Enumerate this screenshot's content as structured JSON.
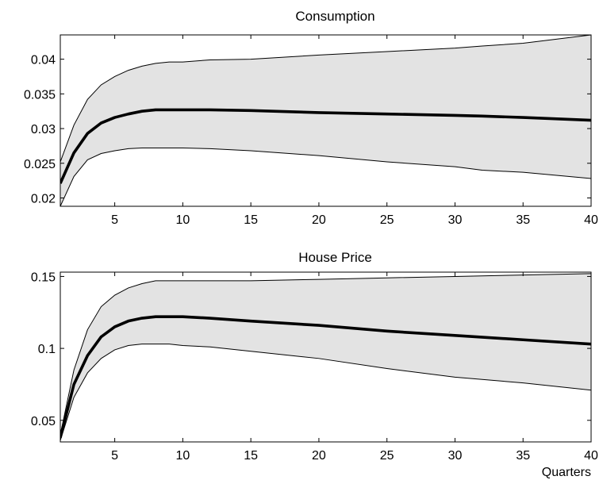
{
  "chart_data": [
    {
      "type": "area",
      "title": "Consumption",
      "xlabel": "",
      "ylabel": "",
      "xlim": [
        1,
        40
      ],
      "ylim": [
        0.0188,
        0.0435
      ],
      "xticks": [
        5,
        10,
        15,
        20,
        25,
        30,
        35,
        40
      ],
      "yticks": [
        0.02,
        0.025,
        0.03,
        0.035,
        0.04
      ],
      "ytick_labels": [
        "0.02",
        "0.025",
        "0.03",
        "0.035",
        "0.04"
      ],
      "grid": false,
      "band_color": "#e3e3e3",
      "line_color": "#000000",
      "x": [
        1,
        2,
        3,
        4,
        5,
        6,
        7,
        8,
        9,
        10,
        12,
        15,
        20,
        25,
        30,
        32,
        35,
        40
      ],
      "series": [
        {
          "role": "median",
          "values": [
            0.0221,
            0.0265,
            0.0293,
            0.0308,
            0.0316,
            0.0321,
            0.0325,
            0.0327,
            0.0327,
            0.0327,
            0.0327,
            0.0326,
            0.0323,
            0.0321,
            0.0319,
            0.0318,
            0.0316,
            0.0312
          ]
        },
        {
          "role": "upper",
          "values": [
            0.0252,
            0.0305,
            0.0342,
            0.0363,
            0.0375,
            0.0384,
            0.039,
            0.0394,
            0.0396,
            0.0396,
            0.0399,
            0.04,
            0.0406,
            0.0411,
            0.0416,
            0.0419,
            0.0423,
            0.0435
          ]
        },
        {
          "role": "lower",
          "values": [
            0.0188,
            0.0231,
            0.0255,
            0.0264,
            0.0268,
            0.0271,
            0.0272,
            0.0272,
            0.0272,
            0.0272,
            0.0271,
            0.0268,
            0.0261,
            0.0252,
            0.0245,
            0.024,
            0.0237,
            0.0228
          ]
        }
      ]
    },
    {
      "type": "area",
      "title": "House Price",
      "xlabel": "Quarters",
      "ylabel": "",
      "xlim": [
        1,
        40
      ],
      "ylim": [
        0.035,
        0.153
      ],
      "xticks": [
        5,
        10,
        15,
        20,
        25,
        30,
        35,
        40
      ],
      "yticks": [
        0.05,
        0.1,
        0.15
      ],
      "ytick_labels": [
        "0.05",
        "0.1",
        "0.15"
      ],
      "grid": false,
      "band_color": "#e3e3e3",
      "line_color": "#000000",
      "x": [
        1,
        2,
        3,
        4,
        5,
        6,
        7,
        8,
        9,
        10,
        12,
        15,
        20,
        25,
        30,
        35,
        40
      ],
      "series": [
        {
          "role": "median",
          "values": [
            0.038,
            0.075,
            0.095,
            0.108,
            0.115,
            0.119,
            0.121,
            0.122,
            0.122,
            0.122,
            0.121,
            0.119,
            0.116,
            0.112,
            0.109,
            0.106,
            0.103
          ]
        },
        {
          "role": "upper",
          "values": [
            0.04,
            0.085,
            0.113,
            0.129,
            0.137,
            0.142,
            0.145,
            0.147,
            0.147,
            0.147,
            0.147,
            0.147,
            0.148,
            0.149,
            0.15,
            0.151,
            0.152
          ]
        },
        {
          "role": "lower",
          "values": [
            0.036,
            0.066,
            0.083,
            0.093,
            0.099,
            0.102,
            0.103,
            0.103,
            0.103,
            0.102,
            0.101,
            0.098,
            0.093,
            0.086,
            0.08,
            0.076,
            0.071
          ]
        }
      ]
    }
  ]
}
